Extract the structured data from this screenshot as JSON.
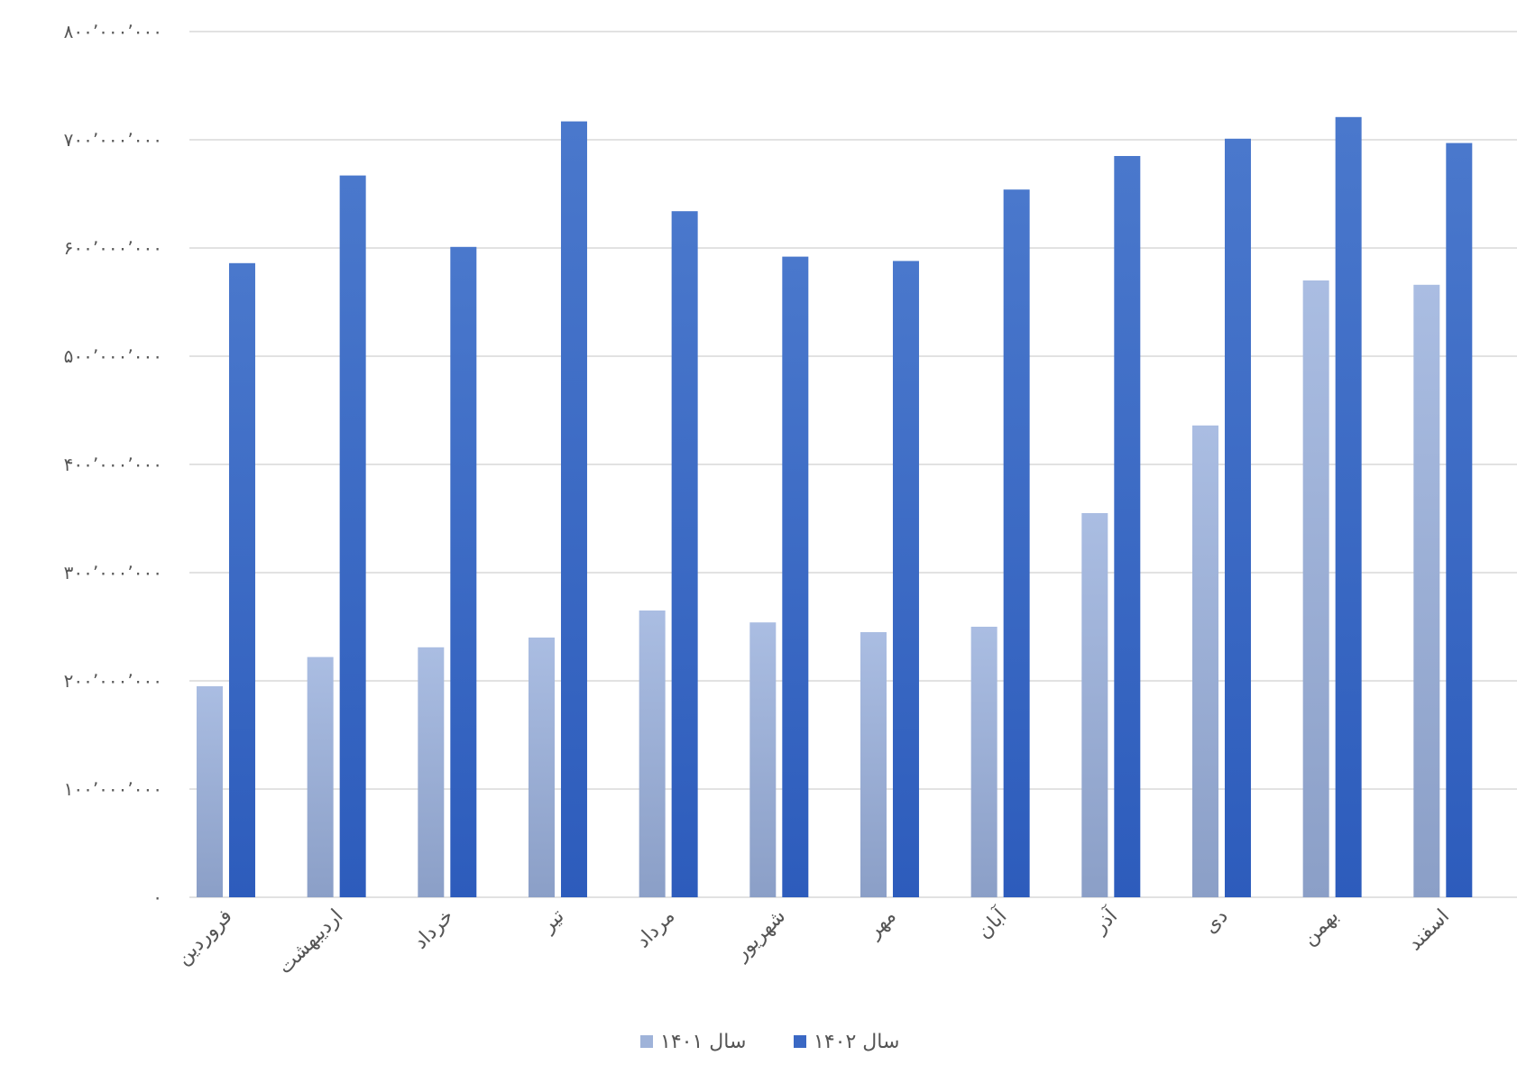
{
  "chart_data": {
    "type": "bar",
    "title": "",
    "xlabel": "",
    "ylabel": "",
    "categories": [
      "فروردین",
      "اردیبهشت",
      "خرداد",
      "تیر",
      "مرداد",
      "شهریور",
      "مهر",
      "آبان",
      "آذر",
      "دی",
      "بهمن",
      "اسفند"
    ],
    "series": [
      {
        "name": "سال ۱۴۰۱",
        "color": "#9fb3d9",
        "values": [
          195000000,
          222000000,
          231000000,
          240000000,
          265000000,
          254000000,
          245000000,
          250000000,
          355000000,
          436000000,
          570000000,
          566000000
        ]
      },
      {
        "name": "سال ۱۴۰۲",
        "color": "#3a68c4",
        "values": [
          586000000,
          667000000,
          601000000,
          717000000,
          634000000,
          592000000,
          588000000,
          654000000,
          685000000,
          701000000,
          721000000,
          697000000
        ]
      }
    ],
    "ylim": [
      0,
      800000000
    ],
    "yticks": [
      0,
      100000000,
      200000000,
      300000000,
      400000000,
      500000000,
      600000000,
      700000000,
      800000000
    ],
    "ytick_labels": [
      "۰",
      "۱۰۰٬۰۰۰٬۰۰۰",
      "۲۰۰٬۰۰۰٬۰۰۰",
      "۳۰۰٬۰۰۰٬۰۰۰",
      "۴۰۰٬۰۰۰٬۰۰۰",
      "۵۰۰٬۰۰۰٬۰۰۰",
      "۶۰۰٬۰۰۰٬۰۰۰",
      "۷۰۰٬۰۰۰٬۰۰۰",
      "۸۰۰٬۰۰۰٬۰۰۰"
    ],
    "grid": true,
    "legend": "bottom-center"
  }
}
